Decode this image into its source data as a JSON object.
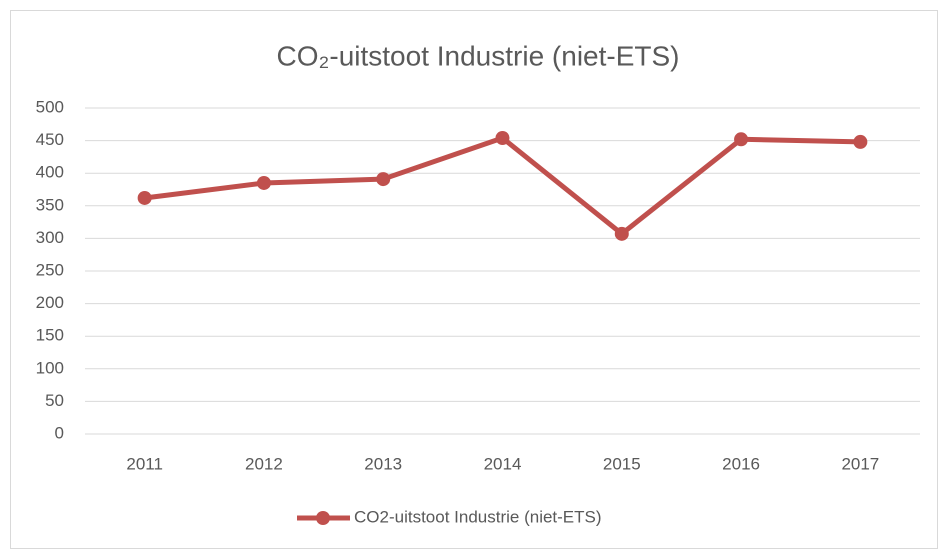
{
  "chart_data": {
    "type": "line",
    "title": "CO₂-uitstoot Industrie (niet-ETS)",
    "categories": [
      "2011",
      "2012",
      "2013",
      "2014",
      "2015",
      "2016",
      "2017"
    ],
    "series": [
      {
        "name": "CO2-uitstoot Industrie (niet-ETS)",
        "color": "#c0504d",
        "values": [
          362,
          385,
          391,
          454,
          307,
          452,
          448
        ]
      }
    ],
    "ylim": [
      0,
      500
    ],
    "yticks": [
      0,
      50,
      100,
      150,
      200,
      250,
      300,
      350,
      400,
      450,
      500
    ],
    "grid": true,
    "legend": "bottom"
  }
}
